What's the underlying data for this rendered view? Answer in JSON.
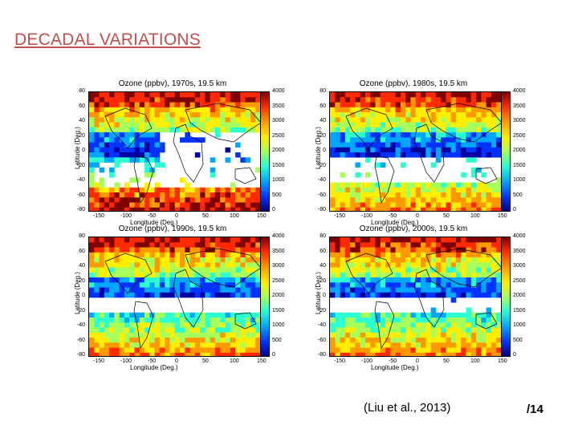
{
  "slide": {
    "title": "DECADAL VARIATIONS",
    "citation": "(Liu et al., 2013)",
    "page_number": "/14"
  },
  "figure": {
    "x_axis_label": "Longitude (Deg.)",
    "y_axis_label": "Latitude (Deg.)",
    "x_ticks": [
      "-150",
      "-100",
      "-50",
      "0",
      "50",
      "100",
      "150"
    ],
    "y_ticks": [
      "80",
      "60",
      "40",
      "20",
      "0",
      "-20",
      "-40",
      "-60",
      "-80"
    ],
    "colorbar_ticks": [
      "4000",
      "3500",
      "3000",
      "2500",
      "2000",
      "1500",
      "1000",
      "500",
      "0"
    ],
    "panels": [
      {
        "title": "Ozone (ppbv), 1970s, 19.5 km",
        "decade": "1970s"
      },
      {
        "title": "Ozone (ppbv), 1980s, 19.5 km",
        "decade": "1980s"
      },
      {
        "title": "Ozone (ppbv), 1990s, 19.5 km",
        "decade": "1990s"
      },
      {
        "title": "Ozone (ppbv), 2000s, 19.5 km",
        "decade": "2000s"
      }
    ]
  },
  "colors": {
    "title": "#c0504d"
  }
}
